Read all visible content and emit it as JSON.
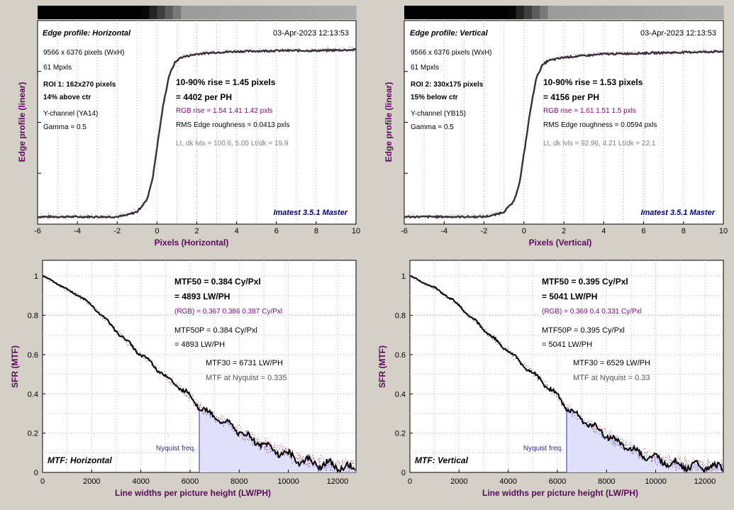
{
  "colors": {
    "background": "#d4d0c8",
    "plot_bg": "#ffffff",
    "axis_label": "#5a0a5a",
    "blue_text": "#000080",
    "rgb_text": "#7a0a7a",
    "gray_text": "#808080",
    "nyquist_fill": "#e0e0fa",
    "nyquist_line": "#5050c0",
    "curve": "#2e2e2e",
    "mtf_curve": "#000000"
  },
  "edge_panels": [
    {
      "title": "Edge profile: Horizontal",
      "timestamp": "03-Apr-2023 12:13:53",
      "info": [
        {
          "text": "9566 x 6376 pixels (WxH)",
          "bold": false
        },
        {
          "text": "61 Mpxls",
          "bold": false
        },
        {
          "text": "ROI 1:  162x270 pixels",
          "bold": true
        },
        {
          "text": "14% above ctr",
          "bold": true
        },
        {
          "text": "Y-channel  (YA14)",
          "bold": false
        },
        {
          "text": "Gamma = 0.5",
          "bold": false
        }
      ],
      "rise_line1": "10-90% rise = 1.45 pixels",
      "rise_line2": "= 4402 per PH",
      "rgb_rise": "RGB rise = 1.54  1.41  1.42 pxls",
      "roughness": "RMS Edge roughness = 0.0413 pxls",
      "levels": "Lt, dk lvls = 100.6, 5.05   Lt/dk = 19.9",
      "watermark": "Imatest 3.5.1 Master",
      "xlabel": "Pixels (Horizontal)",
      "ylabel": "Edge profile (linear)",
      "x_ticks": [
        "-6",
        "-4",
        "-2",
        "0",
        "2",
        "4",
        "6",
        "8",
        "10"
      ],
      "chart_data": {
        "type": "line",
        "xlim": [
          -6,
          10
        ],
        "x": [
          -6,
          -2,
          -1.5,
          -1,
          -0.5,
          -0.2,
          0,
          0.3,
          0.6,
          0.9,
          1.2,
          2,
          3,
          4,
          6,
          8,
          10
        ],
        "y": [
          0.01,
          0.01,
          0.02,
          0.04,
          0.11,
          0.25,
          0.42,
          0.66,
          0.84,
          0.92,
          0.95,
          0.97,
          0.98,
          0.985,
          0.99,
          0.99,
          0.995
        ]
      }
    },
    {
      "title": "Edge profile: Vertical",
      "timestamp": "03-Apr-2023 12:13:53",
      "info": [
        {
          "text": "9566 x 6376 pixels (WxH)",
          "bold": false
        },
        {
          "text": "61 Mpxls",
          "bold": false
        },
        {
          "text": "ROI 2:  330x175 pixels",
          "bold": true
        },
        {
          "text": "15% below ctr",
          "bold": true
        },
        {
          "text": "Y-channel  (YB15)",
          "bold": false
        },
        {
          "text": "Gamma = 0.5",
          "bold": false
        }
      ],
      "rise_line1": "10-90% rise = 1.53 pixels",
      "rise_line2": "= 4156 per PH",
      "rgb_rise": "RGB rise = 1.61  1.51  1.5 pxls",
      "roughness": "RMS Edge roughness = 0.0594 pxls",
      "levels": "Lt, dk lvls = 92.96, 4.21   Lt/dk = 22.1",
      "watermark": "Imatest 3.5.1 Master",
      "xlabel": "Pixels (Vertical)",
      "ylabel": "Edge profile (linear)",
      "x_ticks": [
        "-6",
        "-4",
        "-2",
        "0",
        "2",
        "4",
        "6",
        "8",
        "10"
      ],
      "chart_data": {
        "type": "line",
        "xlim": [
          -6,
          10
        ],
        "x": [
          -6,
          -2,
          -1.5,
          -1,
          -0.5,
          -0.2,
          0,
          0.3,
          0.6,
          0.9,
          1.2,
          2,
          3,
          4,
          6,
          8,
          10
        ],
        "y": [
          0.01,
          0.01,
          0.02,
          0.04,
          0.1,
          0.22,
          0.38,
          0.62,
          0.82,
          0.9,
          0.93,
          0.95,
          0.96,
          0.97,
          0.975,
          0.98,
          0.985
        ]
      }
    }
  ],
  "mtf_panels": [
    {
      "mtf50_line1": "MTF50 = 0.384 Cy/Pxl",
      "mtf50_line2": "= 4893 LW/PH",
      "rgb": "(RGB) = 0.367  0.386  0.387 Cy/Pxl",
      "mtf50p_line1": "MTF50P = 0.384 Cy/Pxl",
      "mtf50p_line2": "= 4893 LW/PH",
      "mtf30": "MTF30 = 6731 LW/PH",
      "nyquist_mtf": "MTF at Nyquist = 0.335",
      "nyquist_label": "Nyquist freq.",
      "title": "MTF: Horizontal",
      "xlabel": "Line widths per picture height (LW/PH)",
      "ylabel": "SFR (MTF)",
      "x_ticks": [
        "0",
        "2000",
        "4000",
        "6000",
        "8000",
        "10000",
        "12000"
      ],
      "y_ticks": [
        "0",
        "0.2",
        "0.4",
        "0.6",
        "0.8",
        "1"
      ],
      "chart_data": {
        "type": "line",
        "xlim": [
          0,
          12752
        ],
        "ylim": [
          0,
          1.08
        ],
        "nyquist_x": 6376,
        "x": [
          0,
          500,
          1000,
          1500,
          2000,
          2500,
          3000,
          3500,
          4000,
          4500,
          4893,
          5500,
          6000,
          6376,
          7000,
          7500,
          8000,
          8500,
          9000,
          9500,
          10000,
          10500,
          11000,
          11500,
          12000,
          12500,
          12752
        ],
        "y": [
          1.0,
          0.97,
          0.93,
          0.9,
          0.85,
          0.79,
          0.72,
          0.66,
          0.6,
          0.55,
          0.5,
          0.44,
          0.39,
          0.335,
          0.28,
          0.25,
          0.21,
          0.17,
          0.14,
          0.11,
          0.09,
          0.06,
          0.05,
          0.04,
          0.03,
          0.02,
          0.01
        ]
      }
    },
    {
      "mtf50_line1": "MTF50 = 0.395 Cy/Pxl",
      "mtf50_line2": "= 5041 LW/PH",
      "rgb": "(RGB) = 0.369  0.4  0.331 Cy/Pxl",
      "mtf50p_line1": "MTF50P = 0.395 Cy/Pxl",
      "mtf50p_line2": "= 5041 LW/PH",
      "mtf30": "MTF30 = 6529 LW/PH",
      "nyquist_mtf": "MTF at Nyquist = 0.33",
      "nyquist_label": "Nyquist freq.",
      "title": "MTF: Vertical",
      "xlabel": "Line widths per picture height (LW/PH)",
      "ylabel": "SFR (MTF)",
      "x_ticks": [
        "0",
        "2000",
        "4000",
        "6000",
        "8000",
        "10000",
        "12000"
      ],
      "y_ticks": [
        "0",
        "0.2",
        "0.4",
        "0.6",
        "0.8",
        "1"
      ],
      "chart_data": {
        "type": "line",
        "xlim": [
          0,
          12752
        ],
        "ylim": [
          0,
          1.08
        ],
        "nyquist_x": 6376,
        "x": [
          0,
          500,
          1000,
          1500,
          2000,
          2500,
          3000,
          3500,
          4000,
          4500,
          5041,
          5500,
          6000,
          6376,
          7000,
          7500,
          8000,
          8500,
          9000,
          9500,
          10000,
          10500,
          11000,
          11500,
          12000,
          12500,
          12752
        ],
        "y": [
          1.0,
          0.97,
          0.94,
          0.9,
          0.85,
          0.79,
          0.73,
          0.67,
          0.62,
          0.56,
          0.5,
          0.45,
          0.39,
          0.33,
          0.27,
          0.23,
          0.19,
          0.15,
          0.12,
          0.09,
          0.07,
          0.05,
          0.04,
          0.03,
          0.03,
          0.02,
          0.02
        ]
      }
    }
  ]
}
